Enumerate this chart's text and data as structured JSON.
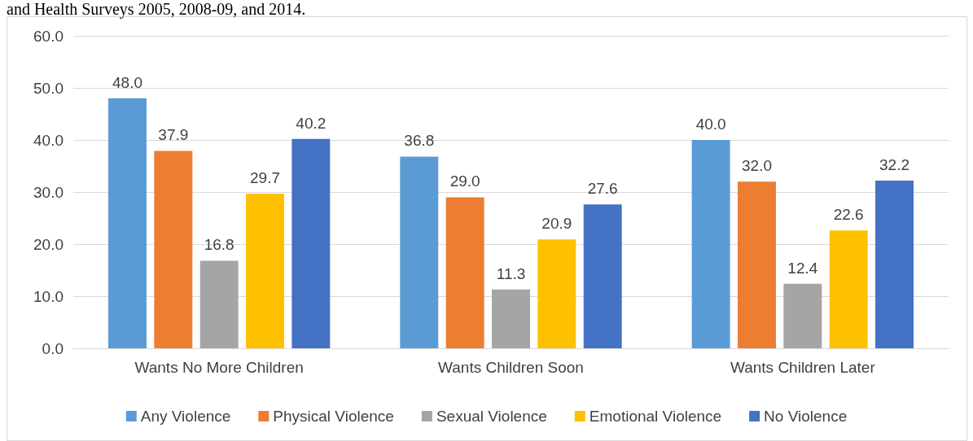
{
  "chart_data": {
    "type": "bar",
    "title": "and Health Surveys 2005, 2008-09, and 2014.",
    "categories": [
      "Wants No More Children",
      "Wants Children Soon",
      "Wants Children Later"
    ],
    "series": [
      {
        "name": "Any Violence",
        "color": "#5b9bd5",
        "values": [
          48.0,
          36.8,
          40.0
        ],
        "value_labels": [
          "48.0",
          "36.8",
          "40.0"
        ]
      },
      {
        "name": "Physical Violence",
        "color": "#ed7d31",
        "values": [
          37.9,
          29.0,
          32.0
        ],
        "value_labels": [
          "37.9",
          "29.0",
          "32.0"
        ]
      },
      {
        "name": "Sexual Violence",
        "color": "#a5a5a5",
        "values": [
          16.8,
          11.3,
          12.4
        ],
        "value_labels": [
          "16.8",
          "11.3",
          "12.4"
        ]
      },
      {
        "name": "Emotional Violence",
        "color": "#ffc000",
        "values": [
          29.7,
          20.9,
          22.6
        ],
        "value_labels": [
          "29.7",
          "20.9",
          "22.6"
        ]
      },
      {
        "name": "No Violence",
        "color": "#4472c4",
        "values": [
          40.2,
          27.6,
          32.2
        ],
        "value_labels": [
          "40.2",
          "27.6",
          "32.2"
        ]
      }
    ],
    "ylim": [
      0,
      60
    ],
    "yticks": [
      {
        "value": 0,
        "label": "0.0"
      },
      {
        "value": 10,
        "label": "10.0"
      },
      {
        "value": 20,
        "label": "20.0"
      },
      {
        "value": 30,
        "label": "30.0"
      },
      {
        "value": 40,
        "label": "40.0"
      },
      {
        "value": 50,
        "label": "50.0"
      },
      {
        "value": 60,
        "label": "60.0"
      }
    ],
    "grid": "y",
    "legend": "bottom"
  }
}
